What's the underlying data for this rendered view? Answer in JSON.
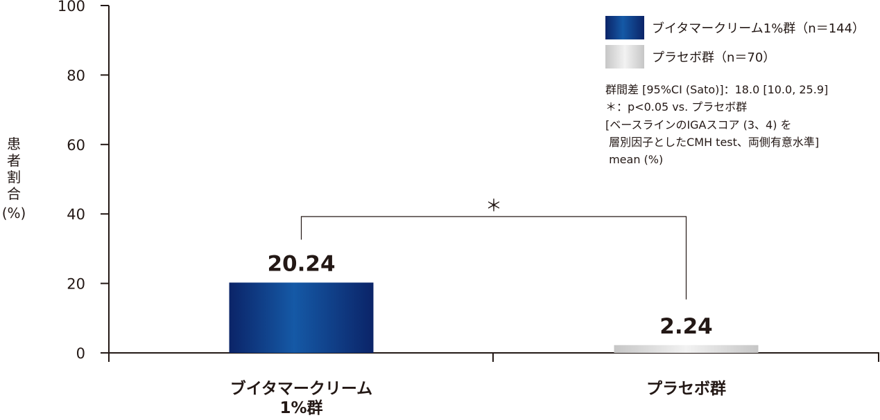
{
  "chart_data": {
    "type": "bar",
    "categories": [
      "ブイタマークリーム 1%群",
      "プラセボ群"
    ],
    "category_lines": [
      [
        "ブイタマークリーム",
        "1%群"
      ],
      [
        "プラセボ群"
      ]
    ],
    "values": [
      20.24,
      2.24
    ],
    "value_labels": [
      "20.24",
      "2.24"
    ],
    "ylabel_chars": [
      "患",
      "者",
      "割",
      "合"
    ],
    "ylabel_unit": "(%)",
    "ylim": [
      0,
      100
    ],
    "yticks": [
      0,
      20,
      40,
      60,
      80,
      100
    ],
    "grid": false,
    "legend": {
      "placement": "top-right",
      "entries": [
        {
          "label": "ブイタマークリーム1%群（n＝144）",
          "style": "navy-gradient"
        },
        {
          "label": "プラセボ群（n＝70）",
          "style": "gray-gradient"
        }
      ]
    },
    "significance": {
      "between": [
        0,
        1
      ],
      "marker": "＊"
    },
    "notes": [
      "群間差 [95%CI (Sato)]：18.0 [10.0, 25.9]",
      "＊：p<0.05 vs. プラセボ群",
      "[ベースラインのIGAスコア (3、4) を",
      " 層別因子としたCMH test、両側有意水準]",
      " mean (%)"
    ],
    "colors": {
      "bar_active_dark": "#0b2468",
      "bar_active_light": "#1559a6",
      "bar_placebo_dark": "#c6c6c6",
      "bar_placebo_light": "#f2f2f2",
      "axis": "#231815"
    }
  }
}
